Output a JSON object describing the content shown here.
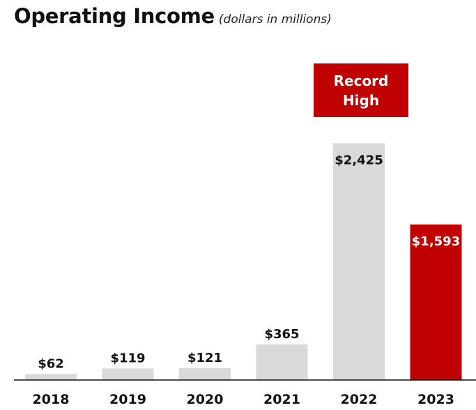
{
  "header": {
    "title": "Operating Income",
    "subtitle": "(dollars in millions)"
  },
  "callout": {
    "text": "Record High",
    "color": "#c00000"
  },
  "chart_data": {
    "type": "bar",
    "categories": [
      "2018",
      "2019",
      "2020",
      "2021",
      "2022",
      "2023"
    ],
    "values": [
      62,
      119,
      121,
      365,
      2425,
      1593
    ],
    "value_labels": [
      "$62",
      "$119",
      "$121",
      "$365",
      "$2,425",
      "$1,593"
    ],
    "bar_colors": [
      "#d9d9d9",
      "#d9d9d9",
      "#d9d9d9",
      "#d9d9d9",
      "#d9d9d9",
      "#c00000"
    ],
    "label_inside": [
      false,
      false,
      false,
      false,
      true,
      true
    ],
    "title": "Operating Income",
    "subtitle": "(dollars in millions)",
    "xlabel": "",
    "ylabel": "",
    "ylim": [
      0,
      2500
    ],
    "grid": false,
    "legend": "none"
  }
}
